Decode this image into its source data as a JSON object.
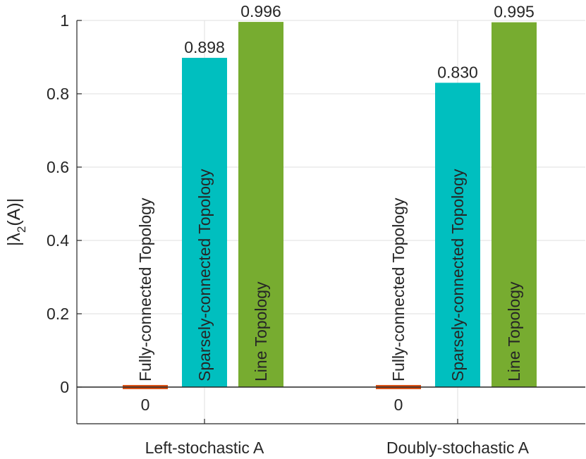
{
  "chart_data": {
    "type": "bar",
    "categories": [
      "Left-stochastic A",
      "Doubly-stochastic A"
    ],
    "series": [
      {
        "name": "Fully-connected Topology",
        "values": [
          0,
          0
        ],
        "labels": [
          "0",
          "0"
        ]
      },
      {
        "name": "Sparsely-connected Topology",
        "values": [
          0.898,
          0.83
        ],
        "labels": [
          "0.898",
          "0.830"
        ]
      },
      {
        "name": "Line Topology",
        "values": [
          0.996,
          0.995
        ],
        "labels": [
          "0.996",
          "0.995"
        ]
      }
    ],
    "colors": [
      "#d95319",
      "#00bfbf",
      "#77ac30"
    ],
    "title": "",
    "xlabel": "",
    "ylabel_main": "|λ",
    "ylabel_sub": "2",
    "ylabel_tail": "(A)|",
    "ylim": [
      -0.1,
      1
    ],
    "yticks": [
      0,
      0.2,
      0.4,
      0.6,
      0.8,
      1
    ],
    "ytick_labels": [
      "0",
      "0.2",
      "0.4",
      "0.6",
      "0.8",
      "1"
    ],
    "grid": true
  }
}
